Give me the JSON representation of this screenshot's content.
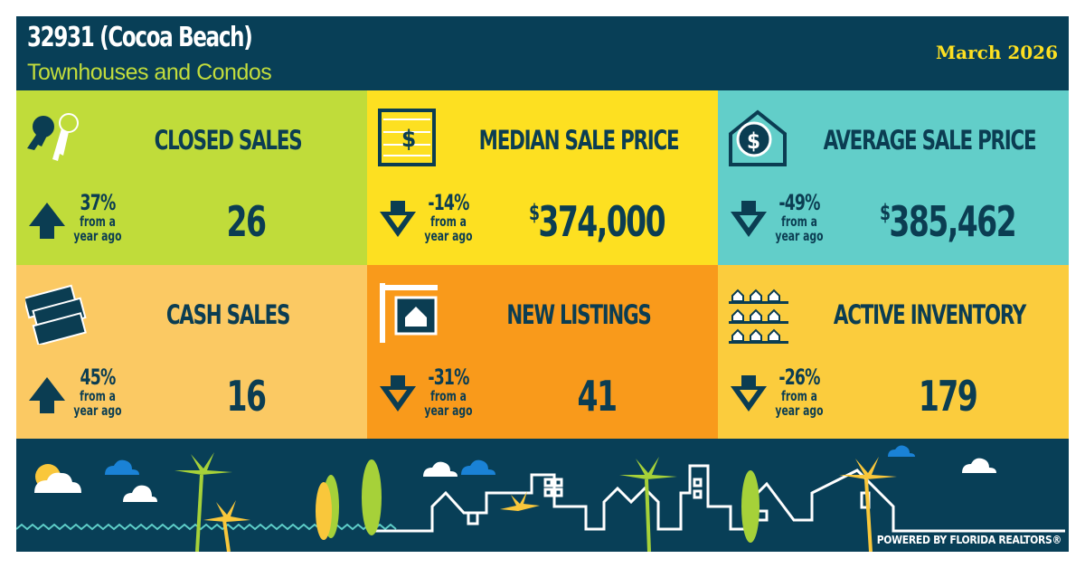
{
  "header": {
    "title": "32931 (Cocoa Beach)",
    "subtitle": "Townhouses and Condos",
    "date": "March 2026"
  },
  "tiles": [
    {
      "label": "CLOSED SALES",
      "icon": "keys-icon",
      "direction": "up",
      "change": "37%",
      "change_sub1": "from a",
      "change_sub2": "year ago",
      "value": "26",
      "currency": "",
      "color": "#c0dc3a"
    },
    {
      "label": "MEDIAN SALE PRICE",
      "icon": "abacus-icon",
      "direction": "down",
      "change": "-14%",
      "change_sub1": "from a",
      "change_sub2": "year ago",
      "value": "374,000",
      "currency": "$",
      "color": "#fde021"
    },
    {
      "label": "AVERAGE SALE PRICE",
      "icon": "house-dollar-icon",
      "direction": "down",
      "change": "-49%",
      "change_sub1": "from a",
      "change_sub2": "year ago",
      "value": "385,462",
      "currency": "$",
      "color": "#62cec9"
    },
    {
      "label": "CASH SALES",
      "icon": "cash-icon",
      "direction": "up",
      "change": "45%",
      "change_sub1": "from a",
      "change_sub2": "year ago",
      "value": "16",
      "currency": "",
      "color": "#fbc963"
    },
    {
      "label": "NEW LISTINGS",
      "icon": "for-sale-sign-icon",
      "direction": "down",
      "change": "-31%",
      "change_sub1": "from a",
      "change_sub2": "year ago",
      "value": "41",
      "currency": "",
      "color": "#f99a1b"
    },
    {
      "label": "ACTIVE INVENTORY",
      "icon": "houses-shelf-icon",
      "direction": "down",
      "change": "-26%",
      "change_sub1": "from a",
      "change_sub2": "year ago",
      "value": "179",
      "currency": "",
      "color": "#fbcc3d"
    }
  ],
  "footer": {
    "powered_by": "POWERED BY FLORIDA REALTORS®"
  }
}
